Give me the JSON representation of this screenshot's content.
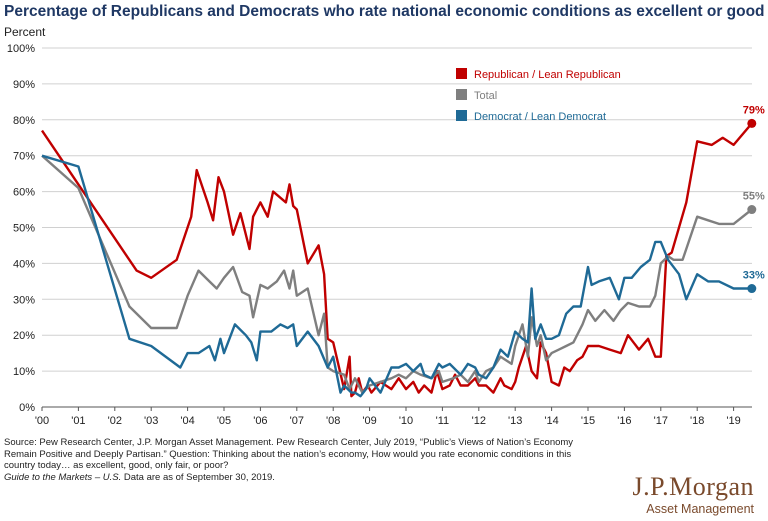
{
  "title": "Percentage of Republicans and Democrats who rate national economic conditions as excellent or good",
  "source_text": "Source: Pew Research Center, J.P. Morgan Asset Management. Pew Research Center, July 2019, “Public’s Views of Nation’s Economy Remain Positive and Deeply Partisan.” Question: Thinking about the nation’s economy, How would you rate economic conditions in this country today… as excellent, good, only fair, or poor?",
  "guide_label": "Guide to the Markets – U.S.",
  "data_date": "Data are as of September 30, 2019.",
  "logo": {
    "name": "J.P.Morgan",
    "sub": "Asset Management"
  },
  "chart_data": {
    "type": "line",
    "ylabel": "Percent",
    "xlim": [
      2000,
      2019.8
    ],
    "ylim": [
      0,
      100
    ],
    "yticks": [
      "0%",
      "10%",
      "20%",
      "30%",
      "40%",
      "50%",
      "60%",
      "70%",
      "80%",
      "90%",
      "100%"
    ],
    "xticks": [
      {
        "label": "'00",
        "value": 2000
      },
      {
        "label": "'01",
        "value": 2001
      },
      {
        "label": "'02",
        "value": 2002
      },
      {
        "label": "'03",
        "value": 2003
      },
      {
        "label": "'04",
        "value": 2004
      },
      {
        "label": "'05",
        "value": 2005
      },
      {
        "label": "'06",
        "value": 2006
      },
      {
        "label": "'07",
        "value": 2007
      },
      {
        "label": "'08",
        "value": 2008
      },
      {
        "label": "'09",
        "value": 2009
      },
      {
        "label": "'10",
        "value": 2010
      },
      {
        "label": "'11",
        "value": 2011
      },
      {
        "label": "'12",
        "value": 2012
      },
      {
        "label": "'13",
        "value": 2013
      },
      {
        "label": "'14",
        "value": 2014
      },
      {
        "label": "'15",
        "value": 2015
      },
      {
        "label": "'16",
        "value": 2016
      },
      {
        "label": "'17",
        "value": 2017
      },
      {
        "label": "'18",
        "value": 2018
      },
      {
        "label": "'19",
        "value": 2019
      }
    ],
    "series": [
      {
        "name": "Republican / Lean Republican",
        "color": "#c00000",
        "end_label": "79%",
        "x": [
          2000,
          2001,
          2002,
          2002.6,
          2003,
          2003.7,
          2004.1,
          2004.25,
          2004.55,
          2004.7,
          2004.85,
          2005,
          2005.25,
          2005.45,
          2005.7,
          2005.8,
          2006,
          2006.2,
          2006.35,
          2006.7,
          2006.8,
          2006.9,
          2007,
          2007.3,
          2007.6,
          2007.75,
          2007.85,
          2008,
          2008.3,
          2008.45,
          2008.5,
          2008.6,
          2008.7,
          2008.8,
          2008.95,
          2009.05,
          2009.3,
          2009.6,
          2009.8,
          2010,
          2010.2,
          2010.35,
          2010.5,
          2010.7,
          2010.85,
          2011,
          2011.2,
          2011.35,
          2011.5,
          2011.7,
          2011.9,
          2012,
          2012.2,
          2012.4,
          2012.6,
          2012.7,
          2012.9,
          2013,
          2013.1,
          2013.3,
          2013.45,
          2013.6,
          2013.7,
          2013.85,
          2014,
          2014.2,
          2014.35,
          2014.5,
          2014.7,
          2014.85,
          2015,
          2015.3,
          2015.6,
          2015.9,
          2016.1,
          2016.4,
          2016.65,
          2016.85,
          2017,
          2017.15,
          2017.3,
          2017.7,
          2018,
          2018.4,
          2018.7,
          2019,
          2019.5
        ],
        "y": [
          77,
          62,
          47,
          38,
          36,
          41,
          53,
          66,
          57,
          52,
          64,
          60,
          48,
          54,
          44,
          53,
          57,
          53,
          60,
          57,
          62,
          56,
          55,
          40,
          45,
          37,
          19,
          18,
          5,
          14,
          3,
          4,
          8,
          4,
          6,
          4,
          7,
          5,
          8,
          5,
          7,
          4,
          6,
          4,
          10,
          5,
          6,
          9,
          6,
          6,
          8,
          6,
          6,
          4,
          8,
          6,
          5,
          7,
          11,
          17,
          10,
          8,
          18,
          15,
          7,
          6,
          11,
          10,
          13,
          14,
          17,
          17,
          16,
          15,
          20,
          16,
          19,
          14,
          14,
          42,
          43,
          57,
          74,
          73,
          75,
          73,
          79
        ]
      },
      {
        "name": "Total",
        "color": "#7f7f7f",
        "end_label": "55%",
        "x": [
          2000,
          2001,
          2002.4,
          2003,
          2003.7,
          2004,
          2004.3,
          2004.6,
          2004.8,
          2005,
          2005.25,
          2005.5,
          2005.7,
          2005.8,
          2006,
          2006.2,
          2006.45,
          2006.65,
          2006.8,
          2006.9,
          2007,
          2007.3,
          2007.6,
          2007.75,
          2007.85,
          2008,
          2008.3,
          2008.45,
          2008.6,
          2008.8,
          2009,
          2009.3,
          2009.6,
          2009.8,
          2010,
          2010.2,
          2010.4,
          2010.7,
          2010.9,
          2011,
          2011.3,
          2011.5,
          2011.7,
          2011.9,
          2012,
          2012.2,
          2012.4,
          2012.6,
          2012.9,
          2013,
          2013.2,
          2013.35,
          2013.45,
          2013.6,
          2013.7,
          2013.85,
          2014,
          2014.2,
          2014.4,
          2014.6,
          2014.85,
          2015,
          2015.2,
          2015.45,
          2015.7,
          2015.9,
          2016.1,
          2016.4,
          2016.7,
          2016.85,
          2017,
          2017.2,
          2017.35,
          2017.6,
          2017.8,
          2018,
          2018.3,
          2018.6,
          2019,
          2019.5
        ],
        "y": [
          70,
          61,
          28,
          22,
          22,
          31,
          38,
          35,
          33,
          36,
          39,
          32,
          31,
          25,
          34,
          33,
          35,
          38,
          33,
          38,
          31,
          33,
          20,
          26,
          11,
          10,
          9,
          5,
          8,
          4,
          6,
          7,
          8,
          9,
          8,
          10,
          9,
          8,
          10,
          7,
          8,
          9,
          7,
          10,
          7,
          10,
          11,
          14,
          12,
          17,
          23,
          14,
          25,
          17,
          20,
          13,
          15,
          16,
          17,
          18,
          23,
          27,
          24,
          27,
          24,
          27,
          29,
          28,
          28,
          31,
          40,
          42,
          41,
          41,
          47,
          53,
          52,
          51,
          51,
          55
        ]
      },
      {
        "name": "Democrat / Lean Democrat",
        "color": "#1f6a96",
        "end_label": "33%",
        "x": [
          2000,
          2001,
          2002.4,
          2003,
          2003.8,
          2004,
          2004.3,
          2004.6,
          2004.75,
          2004.9,
          2005,
          2005.3,
          2005.6,
          2005.75,
          2005.9,
          2006,
          2006.3,
          2006.55,
          2006.75,
          2006.9,
          2007,
          2007.3,
          2007.6,
          2007.85,
          2008,
          2008.2,
          2008.3,
          2008.5,
          2008.6,
          2008.75,
          2008.9,
          2009,
          2009.3,
          2009.6,
          2009.8,
          2010,
          2010.2,
          2010.4,
          2010.5,
          2010.7,
          2010.9,
          2011,
          2011.2,
          2011.5,
          2011.7,
          2011.9,
          2012,
          2012.2,
          2012.4,
          2012.6,
          2012.8,
          2013,
          2013.2,
          2013.35,
          2013.45,
          2013.55,
          2013.7,
          2013.85,
          2014,
          2014.2,
          2014.4,
          2014.6,
          2014.8,
          2015,
          2015.1,
          2015.3,
          2015.6,
          2015.85,
          2016,
          2016.2,
          2016.45,
          2016.7,
          2016.85,
          2017,
          2017.2,
          2017.5,
          2017.7,
          2018,
          2018.3,
          2018.6,
          2019,
          2019.5
        ],
        "y": [
          70,
          67,
          19,
          17,
          11,
          15,
          15,
          17,
          13,
          19,
          15,
          23,
          20,
          18,
          13,
          21,
          21,
          23,
          22,
          23,
          17,
          21,
          17,
          11,
          14,
          4,
          6,
          4,
          4,
          3,
          5,
          8,
          4,
          11,
          11,
          12,
          10,
          12,
          9,
          8,
          12,
          11,
          12,
          9,
          12,
          11,
          9,
          8,
          11,
          16,
          14,
          21,
          19,
          18,
          33,
          19,
          23,
          19,
          19,
          20,
          26,
          28,
          28,
          39,
          34,
          35,
          36,
          30,
          36,
          36,
          39,
          41,
          46,
          46,
          41,
          37,
          30,
          37,
          35,
          35,
          33,
          33
        ]
      }
    ]
  }
}
